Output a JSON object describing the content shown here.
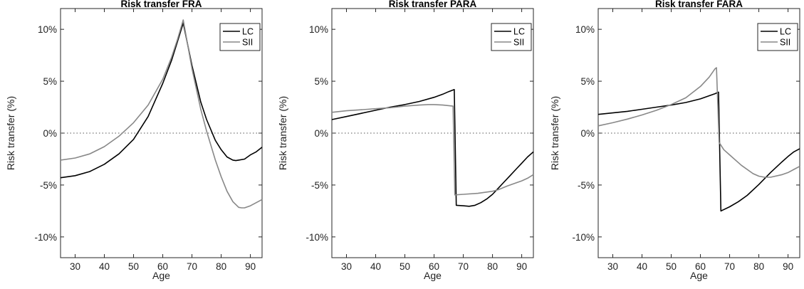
{
  "chart_data": [
    {
      "type": "line",
      "title": "Risk transfer FRA",
      "xlabel": "Age",
      "ylabel": "Risk transfer (%)",
      "xlim": [
        25,
        94
      ],
      "ylim": [
        -12,
        12
      ],
      "xticks": [
        30,
        40,
        50,
        60,
        70,
        80,
        90
      ],
      "xtick_labels": [
        "30",
        "40",
        "50",
        "60",
        "70",
        "80",
        "90"
      ],
      "yticks": [
        -10,
        -5,
        0,
        5,
        10
      ],
      "ytick_labels": [
        "-10%",
        "-5%",
        "0%",
        "5%",
        "10%"
      ],
      "zero_line": true,
      "legend": "top-right",
      "series": [
        {
          "name": "LC",
          "color": "#000000",
          "x": [
            25,
            30,
            35,
            40,
            45,
            50,
            55,
            60,
            63,
            65,
            67,
            70,
            73,
            75,
            78,
            80,
            82,
            84,
            85,
            86,
            88,
            90,
            92,
            94
          ],
          "y": [
            -4.3,
            -4.1,
            -3.7,
            -3.0,
            -2.0,
            -0.6,
            1.6,
            4.8,
            7.0,
            8.8,
            10.6,
            6.5,
            3.0,
            1.3,
            -0.7,
            -1.6,
            -2.3,
            -2.6,
            -2.65,
            -2.6,
            -2.5,
            -2.1,
            -1.8,
            -1.35
          ]
        },
        {
          "name": "SII",
          "color": "#888888",
          "x": [
            25,
            30,
            35,
            40,
            45,
            50,
            55,
            60,
            63,
            65,
            67,
            70,
            73,
            75,
            78,
            80,
            82,
            84,
            86,
            87,
            88,
            90,
            92,
            94
          ],
          "y": [
            -2.6,
            -2.4,
            -2.0,
            -1.3,
            -0.3,
            1.0,
            2.7,
            5.2,
            7.3,
            9.0,
            10.9,
            6.2,
            2.3,
            0.2,
            -2.6,
            -4.2,
            -5.6,
            -6.6,
            -7.15,
            -7.2,
            -7.2,
            -7.0,
            -6.7,
            -6.4
          ]
        }
      ]
    },
    {
      "type": "line",
      "title": "Risk transfer PARA",
      "xlabel": "Age",
      "ylabel": "Risk transfer (%)",
      "xlim": [
        25,
        94
      ],
      "ylim": [
        -12,
        12
      ],
      "xticks": [
        30,
        40,
        50,
        60,
        70,
        80,
        90
      ],
      "xtick_labels": [
        "30",
        "40",
        "50",
        "60",
        "70",
        "80",
        "90"
      ],
      "yticks": [
        -10,
        -5,
        0,
        5,
        10
      ],
      "ytick_labels": [
        "-10%",
        "-5%",
        "0%",
        "5%",
        "10%"
      ],
      "zero_line": true,
      "legend": "top-right",
      "series": [
        {
          "name": "LC",
          "color": "#000000",
          "x": [
            25,
            30,
            35,
            40,
            45,
            50,
            55,
            60,
            63,
            65,
            66.9,
            67.6,
            70,
            72,
            74,
            76,
            78,
            80,
            82,
            84,
            86,
            88,
            90,
            92,
            94
          ],
          "y": [
            1.3,
            1.6,
            1.9,
            2.2,
            2.5,
            2.75,
            3.05,
            3.45,
            3.75,
            4.0,
            4.2,
            -6.95,
            -7.0,
            -7.05,
            -6.95,
            -6.7,
            -6.35,
            -5.9,
            -5.3,
            -4.7,
            -4.1,
            -3.5,
            -2.9,
            -2.3,
            -1.8
          ]
        },
        {
          "name": "SII",
          "color": "#888888",
          "x": [
            25,
            30,
            35,
            40,
            45,
            50,
            55,
            58,
            60,
            63,
            65,
            66.5,
            67.1,
            70,
            75,
            80,
            82,
            85,
            88,
            90,
            92,
            94
          ],
          "y": [
            2.0,
            2.15,
            2.25,
            2.35,
            2.45,
            2.6,
            2.7,
            2.75,
            2.75,
            2.7,
            2.65,
            2.6,
            -5.95,
            -5.9,
            -5.8,
            -5.6,
            -5.45,
            -5.1,
            -4.8,
            -4.6,
            -4.35,
            -4.0
          ]
        }
      ]
    },
    {
      "type": "line",
      "title": "Risk transfer FARA",
      "xlabel": "Age",
      "ylabel": "Risk transfer (%)",
      "xlim": [
        25,
        94
      ],
      "ylim": [
        -12,
        12
      ],
      "xticks": [
        30,
        40,
        50,
        60,
        70,
        80,
        90
      ],
      "xtick_labels": [
        "30",
        "40",
        "50",
        "60",
        "70",
        "80",
        "90"
      ],
      "yticks": [
        -10,
        -5,
        0,
        5,
        10
      ],
      "ytick_labels": [
        "-10%",
        "-5%",
        "0%",
        "5%",
        "10%"
      ],
      "zero_line": true,
      "legend": "top-right",
      "series": [
        {
          "name": "LC",
          "color": "#000000",
          "x": [
            25,
            30,
            35,
            40,
            45,
            50,
            55,
            60,
            63,
            65,
            66.2,
            67.0,
            70,
            73,
            76,
            80,
            84,
            88,
            90,
            92,
            94
          ],
          "y": [
            1.8,
            1.95,
            2.1,
            2.3,
            2.5,
            2.7,
            2.95,
            3.3,
            3.6,
            3.8,
            3.95,
            -7.5,
            -7.1,
            -6.6,
            -6.0,
            -4.95,
            -3.8,
            -2.75,
            -2.25,
            -1.8,
            -1.5
          ]
        },
        {
          "name": "SII",
          "color": "#888888",
          "x": [
            25,
            30,
            35,
            40,
            45,
            50,
            55,
            60,
            63,
            65,
            65.5,
            66.4,
            68,
            70,
            74,
            78,
            80,
            82,
            84,
            88,
            90,
            92,
            94
          ],
          "y": [
            0.7,
            1.0,
            1.35,
            1.75,
            2.2,
            2.75,
            3.4,
            4.5,
            5.4,
            6.2,
            6.3,
            -0.9,
            -1.6,
            -2.1,
            -3.1,
            -3.9,
            -4.15,
            -4.25,
            -4.25,
            -4.0,
            -3.8,
            -3.5,
            -3.2
          ]
        }
      ]
    }
  ]
}
